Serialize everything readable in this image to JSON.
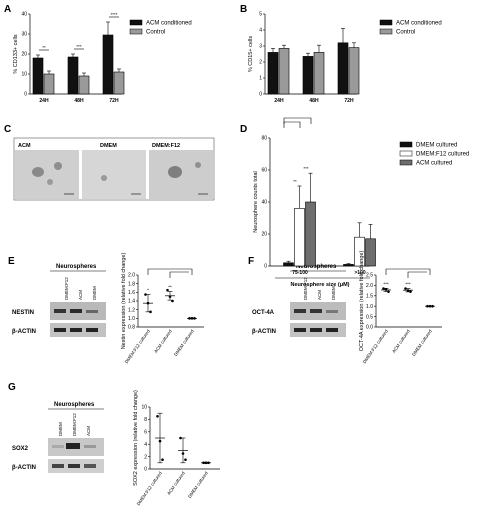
{
  "panels": {
    "A": "A",
    "B": "B",
    "C": "C",
    "D": "D",
    "E": "E",
    "F": "F",
    "G": "G"
  },
  "colors": {
    "black_bar": "#111111",
    "gray_bar": "#9a9a9a",
    "dark_gray_bar": "#6e6e6e",
    "white_bar": "#ffffff"
  },
  "microscopy": {
    "labels": [
      "ACM",
      "DMEM",
      "DMEM:F12"
    ]
  },
  "blots": {
    "E": {
      "header": "Neurospheres",
      "lanes": [
        "DMEM:F12",
        "ACM",
        "DMEM"
      ],
      "rows": [
        "NESTIN",
        "β-ACTIN"
      ]
    },
    "F": {
      "header": "Neurospheres",
      "lanes": [
        "DMEM:F12",
        "ACM",
        "DMEM"
      ],
      "rows": [
        "OCT-4A",
        "β-ACTIN"
      ]
    },
    "G": {
      "header": "Neurospheres",
      "lanes": [
        "DMEM",
        "DMEM:F12",
        "ACM"
      ],
      "rows": [
        "SOX2",
        "β-ACTIN"
      ]
    }
  },
  "chart_data": [
    {
      "panel": "A",
      "type": "bar",
      "categories": [
        "24H",
        "48H",
        "72H"
      ],
      "series": [
        {
          "name": "ACM conditioned",
          "values": [
            18,
            18.5,
            29.5
          ],
          "errors": [
            1.5,
            1.5,
            6.5
          ]
        },
        {
          "name": "Control",
          "values": [
            10,
            9,
            11
          ],
          "errors": [
            1.5,
            1.5,
            1.5
          ]
        }
      ],
      "ylabel": "% CD133+ cells",
      "ylim": [
        0,
        40
      ],
      "yticks": [
        "0",
        "10",
        "20",
        "30",
        "40"
      ],
      "significance": [
        "**",
        "***",
        "****"
      ]
    },
    {
      "panel": "B",
      "type": "bar",
      "categories": [
        "24H",
        "48H",
        "72H"
      ],
      "series": [
        {
          "name": "ACM conditioned",
          "values": [
            2.6,
            2.35,
            3.2
          ],
          "errors": [
            0.25,
            0.2,
            0.9
          ]
        },
        {
          "name": "Control",
          "values": [
            2.85,
            2.6,
            2.9
          ],
          "errors": [
            0.2,
            0.45,
            0.3
          ]
        }
      ],
      "ylabel": "% CD15+ cells",
      "ylim": [
        0,
        5
      ],
      "yticks": [
        "0",
        "1",
        "2",
        "3",
        "4",
        "5"
      ]
    },
    {
      "panel": "D",
      "type": "bar",
      "categories": [
        "75-100",
        ">100"
      ],
      "series": [
        {
          "name": "DMEM cultured",
          "values": [
            2,
            1
          ],
          "errors": [
            1,
            0.5
          ]
        },
        {
          "name": "DMEM:F12 cultured",
          "values": [
            36,
            18
          ],
          "errors": [
            14,
            9
          ]
        },
        {
          "name": "ACM cultured",
          "values": [
            40,
            17
          ],
          "errors": [
            18,
            9
          ]
        }
      ],
      "ylabel": "Neurosphere counts total",
      "xlabel": "Neurosphere size (μM)",
      "ylim": [
        0,
        80
      ],
      "yticks": [
        "0",
        "20",
        "40",
        "60",
        "80"
      ],
      "significance": [
        "**",
        "***"
      ]
    },
    {
      "panel": "E",
      "type": "scatter",
      "categories": [
        "DMEM:F12 cultured",
        "ACM cultured",
        "DMEM cultured"
      ],
      "points": [
        [
          1.55,
          1.35,
          1.15
        ],
        [
          1.65,
          1.5,
          1.4
        ],
        [
          1.0,
          1.0,
          1.0
        ]
      ],
      "means": [
        1.35,
        1.52,
        1.0
      ],
      "errors": [
        0.2,
        0.1,
        0.0
      ],
      "ylabel": "Nestin expression (relative fold change)",
      "ylim": [
        0.8,
        2.0
      ],
      "yticks": [
        "0.8",
        "1.0",
        "1.2",
        "1.4",
        "1.6",
        "1.8",
        "2.0"
      ],
      "significance": [
        "*",
        "**"
      ]
    },
    {
      "panel": "F",
      "type": "scatter",
      "categories": [
        "DMEM:F12 cultured",
        "ACM cultured",
        "DMEM cultured"
      ],
      "points": [
        [
          1.85,
          1.8,
          1.7
        ],
        [
          1.85,
          1.75,
          1.7
        ],
        [
          1.0,
          1.0,
          1.0
        ]
      ],
      "means": [
        1.78,
        1.77,
        1.0
      ],
      "errors": [
        0.08,
        0.08,
        0.0
      ],
      "ylabel": "OCT-4A expression (relative fold change)",
      "ylim": [
        0,
        2.5
      ],
      "yticks": [
        "0.0",
        "0.5",
        "1.0",
        "1.5",
        "2.0",
        "2.5"
      ],
      "significance": [
        "***",
        "***"
      ]
    },
    {
      "panel": "G",
      "type": "scatter",
      "categories": [
        "DMEM:F12 cultured",
        "ACM cultured",
        "DMEM cultured"
      ],
      "points": [
        [
          8.5,
          4.5,
          1.5
        ],
        [
          5.0,
          2.5,
          1.5
        ],
        [
          1.0,
          1.0,
          1.0
        ]
      ],
      "means": [
        5.0,
        3.0,
        1.0
      ],
      "errors": [
        4.0,
        2.0,
        0.1
      ],
      "ylabel": "SOX2 expression (relative fold change)",
      "ylim": [
        0,
        10
      ],
      "yticks": [
        "0",
        "2",
        "4",
        "6",
        "8",
        "10"
      ]
    }
  ]
}
